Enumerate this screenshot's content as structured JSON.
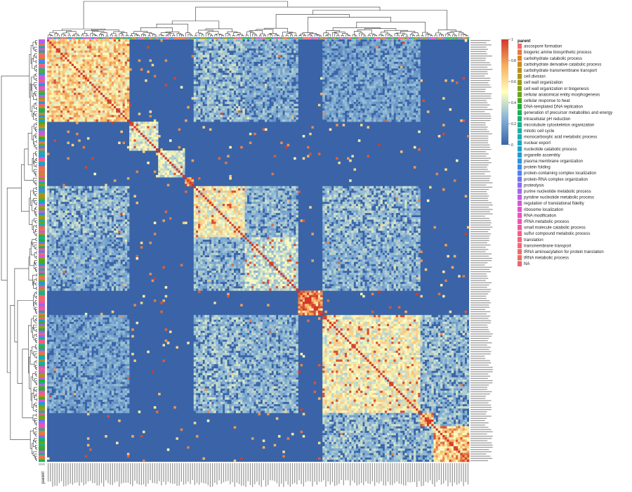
{
  "chart_data": {
    "type": "heatmap",
    "title": "",
    "xlabel": "",
    "ylabel": "",
    "n_terms": 190,
    "color_scale": {
      "min": 0,
      "max": 1,
      "ticks": [
        "0",
        "0.2",
        "0.4",
        "0.6",
        "0.8",
        "1"
      ],
      "stops": [
        "#3a64a7",
        "#86b2d6",
        "#ffffc0",
        "#f6b061",
        "#d1382a"
      ]
    },
    "annotation": {
      "name": "parent",
      "categories": [
        {
          "label": "ascospore formation",
          "color": "#f06a6e"
        },
        {
          "label": "biogenic amine biosynthetic process",
          "color": "#e67a3c"
        },
        {
          "label": "carbohydrate catabolic process",
          "color": "#d8822a"
        },
        {
          "label": "carbohydrate derivative catabolic process",
          "color": "#c98a22"
        },
        {
          "label": "carbohydrate transmembrane transport",
          "color": "#b98e1c"
        },
        {
          "label": "cell division",
          "color": "#a99418"
        },
        {
          "label": "cell wall organization",
          "color": "#979a1a"
        },
        {
          "label": "cell wall organization or biogenesis",
          "color": "#82a01a"
        },
        {
          "label": "cellular anatomical entity morphogenesis",
          "color": "#67a51c"
        },
        {
          "label": "cellular response to heat",
          "color": "#44aa22"
        },
        {
          "label": "DNA-templated DNA replication",
          "color": "#22ad3c"
        },
        {
          "label": "generation of precursor metabolites and energy",
          "color": "#1caf5a"
        },
        {
          "label": "intracellular pH reduction",
          "color": "#1cb074"
        },
        {
          "label": "microtubule cytoskeleton organization",
          "color": "#1cb08c"
        },
        {
          "label": "mitotic cell cycle",
          "color": "#1cae9f"
        },
        {
          "label": "monocarboxylic acid metabolic process",
          "color": "#1cabb0"
        },
        {
          "label": "nuclear export",
          "color": "#1ca7bd"
        },
        {
          "label": "nucleotide catabolic process",
          "color": "#1ca2ca"
        },
        {
          "label": "organelle assembly",
          "color": "#1c9bd6"
        },
        {
          "label": "plasma membrane organization",
          "color": "#2a93e0"
        },
        {
          "label": "protein folding",
          "color": "#3a8ae8"
        },
        {
          "label": "protein-containing complex localization",
          "color": "#5280ee"
        },
        {
          "label": "protein-RNA complex organization",
          "color": "#6c75f0"
        },
        {
          "label": "proteolysis",
          "color": "#8a6cf0"
        },
        {
          "label": "purine nucleotide metabolic process",
          "color": "#a565ec"
        },
        {
          "label": "pyridine nucleotide metabolic process",
          "color": "#bc5ee6"
        },
        {
          "label": "regulation of translational fidelity",
          "color": "#d057dc"
        },
        {
          "label": "ribosome localization",
          "color": "#e052cf"
        },
        {
          "label": "RNA modification",
          "color": "#ea51bf"
        },
        {
          "label": "rRNA metabolic process",
          "color": "#f052ad"
        },
        {
          "label": "small molecule catabolic process",
          "color": "#f4569b"
        },
        {
          "label": "sulfur compound metabolic process",
          "color": "#f55c8a"
        },
        {
          "label": "translation",
          "color": "#f4627c"
        },
        {
          "label": "transmembrane transport",
          "color": "#f26872"
        },
        {
          "label": "tRNA aminoacylation for protein translation",
          "color": "#ee6a6a"
        },
        {
          "label": "tRNA metabolic process",
          "color": "#ea6a64"
        },
        {
          "label": "NA",
          "color": "#e5676e"
        }
      ]
    },
    "blocks": [
      {
        "start": 0,
        "end": 37,
        "within": 0.72
      },
      {
        "start": 37,
        "end": 50,
        "within": 0.55
      },
      {
        "start": 50,
        "end": 62,
        "within": 0.5
      },
      {
        "start": 62,
        "end": 66,
        "within": 0.95
      },
      {
        "start": 66,
        "end": 89,
        "within": 0.62
      },
      {
        "start": 89,
        "end": 113,
        "within": 0.45
      },
      {
        "start": 113,
        "end": 124,
        "within": 0.93
      },
      {
        "start": 124,
        "end": 168,
        "within": 0.6
      },
      {
        "start": 168,
        "end": 174,
        "within": 0.95
      },
      {
        "start": 174,
        "end": 190,
        "within": 0.8
      }
    ],
    "cross_block_similarity": [
      {
        "a": 0,
        "b": 66,
        "value": 0.3
      },
      {
        "a": 0,
        "b": 89,
        "value": 0.25
      },
      {
        "a": 0,
        "b": 124,
        "value": 0.22
      },
      {
        "a": 66,
        "b": 89,
        "value": 0.28
      },
      {
        "a": 66,
        "b": 124,
        "value": 0.3
      },
      {
        "a": 89,
        "b": 124,
        "value": 0.27
      },
      {
        "a": 124,
        "b": 168,
        "value": 0.3
      },
      {
        "a": 124,
        "b": 174,
        "value": 0.3
      },
      {
        "a": 168,
        "b": 174,
        "value": 0.3
      }
    ],
    "legend_position": "right"
  }
}
